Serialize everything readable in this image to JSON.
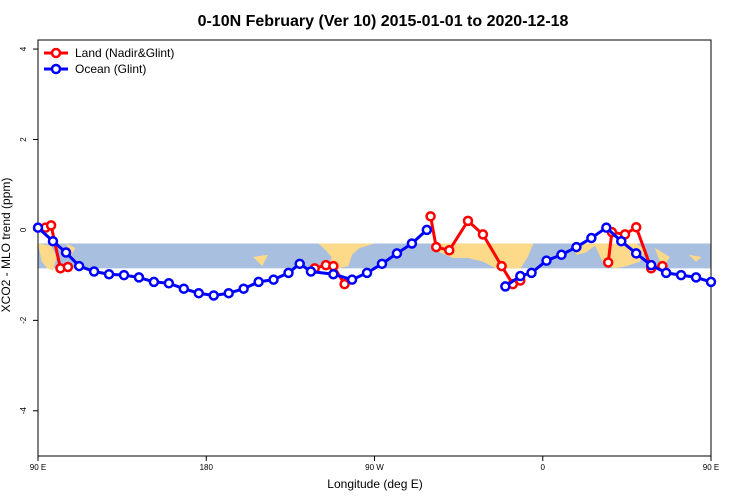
{
  "chart_data": {
    "type": "line",
    "title": "0-10N February (Ver 10)   2015-01-01 to 2020-12-18",
    "xlabel": "Longitude (deg E)",
    "ylabel": "XCO2 - MLO trend (ppm)",
    "xlim": [
      90,
      450
    ],
    "ylim": [
      -5,
      4.2
    ],
    "x_ticks": [
      {
        "value": 90,
        "label": "90 E"
      },
      {
        "value": 180,
        "label": "180"
      },
      {
        "value": 270,
        "label": "90 W"
      },
      {
        "value": 360,
        "label": "0"
      },
      {
        "value": 450,
        "label": "90 E"
      },
      {
        "value": 540,
        "label": "180"
      }
    ],
    "y_ticks": [
      {
        "value": -4,
        "label": "-4"
      },
      {
        "value": -2,
        "label": "-2"
      },
      {
        "value": 0,
        "label": "0"
      },
      {
        "value": 2,
        "label": "2"
      },
      {
        "value": 4,
        "label": "4"
      }
    ],
    "band": {
      "ymin": -0.85,
      "ymax": -0.3,
      "color": "#a9bfe0",
      "land_color": "#fdd98a"
    },
    "grid": false,
    "legend": {
      "position": "top-left"
    },
    "series": [
      {
        "name": "Land (Nadir&Glint)",
        "color": "#ff0000",
        "segments": [
          [
            [
              94,
              0.05
            ],
            [
              97,
              0.1
            ],
            [
              102,
              -0.85
            ],
            [
              106,
              -0.82
            ]
          ],
          [
            [
              238,
              -0.85
            ],
            [
              244,
              -0.78
            ],
            [
              248,
              -0.8
            ],
            [
              254,
              -1.2
            ]
          ],
          [
            [
              300,
              0.3
            ],
            [
              303,
              -0.38
            ],
            [
              310,
              -0.45
            ],
            [
              320,
              0.2
            ],
            [
              328,
              -0.1
            ],
            [
              338,
              -0.8
            ],
            [
              344,
              -1.2
            ],
            [
              348,
              -1.12
            ]
          ],
          [
            [
              395,
              -0.72
            ],
            [
              397,
              -0.05
            ],
            [
              404,
              -0.1
            ],
            [
              410,
              0.06
            ],
            [
              418,
              -0.85
            ],
            [
              424,
              -0.8
            ]
          ]
        ]
      },
      {
        "name": "Ocean (Glint)",
        "color": "#0000ff",
        "segments": [
          [
            [
              90,
              0.05
            ],
            [
              98,
              -0.25
            ],
            [
              105,
              -0.5
            ],
            [
              112,
              -0.8
            ],
            [
              120,
              -0.92
            ],
            [
              128,
              -0.98
            ],
            [
              136,
              -1.0
            ],
            [
              144,
              -1.05
            ],
            [
              152,
              -1.15
            ],
            [
              160,
              -1.18
            ],
            [
              168,
              -1.3
            ],
            [
              176,
              -1.4
            ],
            [
              184,
              -1.45
            ],
            [
              192,
              -1.4
            ],
            [
              200,
              -1.3
            ],
            [
              208,
              -1.15
            ],
            [
              216,
              -1.1
            ],
            [
              224,
              -0.95
            ],
            [
              230,
              -0.75
            ],
            [
              236,
              -0.92
            ],
            [
              248,
              -0.98
            ],
            [
              258,
              -1.1
            ],
            [
              266,
              -0.95
            ],
            [
              274,
              -0.75
            ],
            [
              282,
              -0.52
            ],
            [
              290,
              -0.3
            ],
            [
              298,
              0.0
            ]
          ],
          [
            [
              340,
              -1.25
            ],
            [
              348,
              -1.02
            ],
            [
              354,
              -0.95
            ],
            [
              362,
              -0.68
            ],
            [
              370,
              -0.55
            ],
            [
              378,
              -0.38
            ],
            [
              386,
              -0.18
            ],
            [
              394,
              0.05
            ],
            [
              402,
              -0.25
            ],
            [
              410,
              -0.52
            ],
            [
              418,
              -0.78
            ],
            [
              426,
              -0.95
            ],
            [
              434,
              -1.0
            ],
            [
              442,
              -1.05
            ],
            [
              450,
              -1.15
            ]
          ]
        ]
      }
    ]
  },
  "map": {
    "blobs": [
      [
        [
          90,
          -0.3
        ],
        [
          92,
          -0.7
        ],
        [
          95,
          -0.85
        ],
        [
          98,
          -0.9
        ],
        [
          100,
          -0.6
        ],
        [
          97,
          -0.35
        ]
      ],
      [
        [
          105,
          -0.3
        ],
        [
          108,
          -0.55
        ],
        [
          110,
          -0.4
        ]
      ],
      [
        [
          205,
          -0.6
        ],
        [
          210,
          -0.8
        ],
        [
          213,
          -0.55
        ]
      ],
      [
        [
          240,
          -0.3
        ],
        [
          244,
          -0.45
        ],
        [
          247,
          -0.6
        ],
        [
          246,
          -0.8
        ],
        [
          250,
          -0.85
        ],
        [
          256,
          -0.8
        ],
        [
          258,
          -0.55
        ],
        [
          262,
          -0.4
        ],
        [
          270,
          -0.3
        ]
      ],
      [
        [
          303,
          -0.3
        ],
        [
          305,
          -0.5
        ],
        [
          312,
          -0.62
        ],
        [
          320,
          -0.62
        ],
        [
          328,
          -0.7
        ],
        [
          335,
          -0.85
        ],
        [
          348,
          -0.85
        ],
        [
          352,
          -0.6
        ],
        [
          355,
          -0.3
        ]
      ],
      [
        [
          375,
          -0.3
        ],
        [
          378,
          -0.55
        ],
        [
          383,
          -0.5
        ],
        [
          388,
          -0.35
        ],
        [
          392,
          -0.7
        ],
        [
          398,
          -0.85
        ],
        [
          405,
          -0.8
        ],
        [
          412,
          -0.7
        ],
        [
          415,
          -0.45
        ],
        [
          410,
          -0.3
        ]
      ],
      [
        [
          420,
          -0.4
        ],
        [
          424,
          -0.85
        ],
        [
          428,
          -0.6
        ]
      ],
      [
        [
          438,
          -0.55
        ],
        [
          442,
          -0.7
        ],
        [
          445,
          -0.6
        ]
      ]
    ]
  }
}
